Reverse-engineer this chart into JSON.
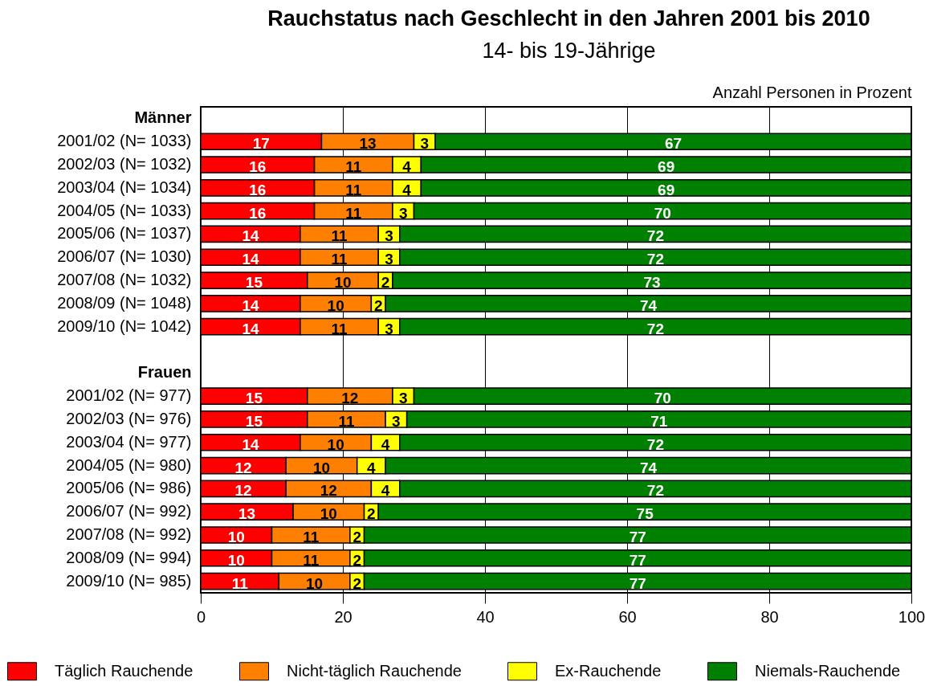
{
  "chart_data": {
    "type": "bar",
    "orientation": "horizontal",
    "stacked": true,
    "title": "Rauchstatus nach Geschlecht in den Jahren 2001 bis 2010",
    "subtitle": "14- bis 19-Jährige",
    "xlabel": "Anzahl Personen in Prozent",
    "categories": [
      "Männer",
      "2001/02 (N= 1033)",
      "2002/03 (N= 1032)",
      "2003/04 (N= 1034)",
      "2004/05 (N= 1033)",
      "2005/06 (N= 1037)",
      "2006/07 (N= 1030)",
      "2007/08 (N= 1032)",
      "2008/09 (N= 1048)",
      "2009/10 (N= 1042)",
      null,
      "Frauen",
      "2001/02 (N=   977)",
      "2002/03 (N=   976)",
      "2003/04 (N=   977)",
      "2004/05 (N=   980)",
      "2005/06 (N=   986)",
      "2006/07 (N=   992)",
      "2007/08 (N=   992)",
      "2008/09 (N=   994)",
      "2009/10 (N=   985)"
    ],
    "series": [
      {
        "name": "Täglich Rauchende",
        "color": "#ff0000",
        "values": [
          null,
          17,
          16,
          16,
          16,
          14,
          14,
          15,
          14,
          14,
          null,
          null,
          15,
          15,
          14,
          12,
          12,
          13,
          10,
          10,
          11
        ]
      },
      {
        "name": "Nicht-täglich Rauchende",
        "color": "#ff8000",
        "values": [
          null,
          13,
          11,
          11,
          11,
          11,
          11,
          10,
          10,
          11,
          null,
          null,
          12,
          11,
          10,
          10,
          12,
          10,
          11,
          11,
          10
        ]
      },
      {
        "name": "Ex-Rauchende",
        "color": "#ffff00",
        "values": [
          null,
          3,
          4,
          4,
          3,
          3,
          3,
          2,
          2,
          3,
          null,
          null,
          3,
          3,
          4,
          4,
          4,
          2,
          2,
          2,
          2
        ]
      },
      {
        "name": "Niemals-Rauchende",
        "color": "#008000",
        "values": [
          null,
          67,
          69,
          69,
          70,
          72,
          72,
          73,
          74,
          72,
          null,
          null,
          70,
          71,
          72,
          74,
          72,
          75,
          77,
          77,
          77
        ]
      }
    ],
    "xlim": [
      0,
      100
    ],
    "xticks": [
      0,
      20,
      40,
      60,
      80,
      100
    ],
    "grid": "x",
    "legend": "bottom",
    "data_labels": true
  }
}
